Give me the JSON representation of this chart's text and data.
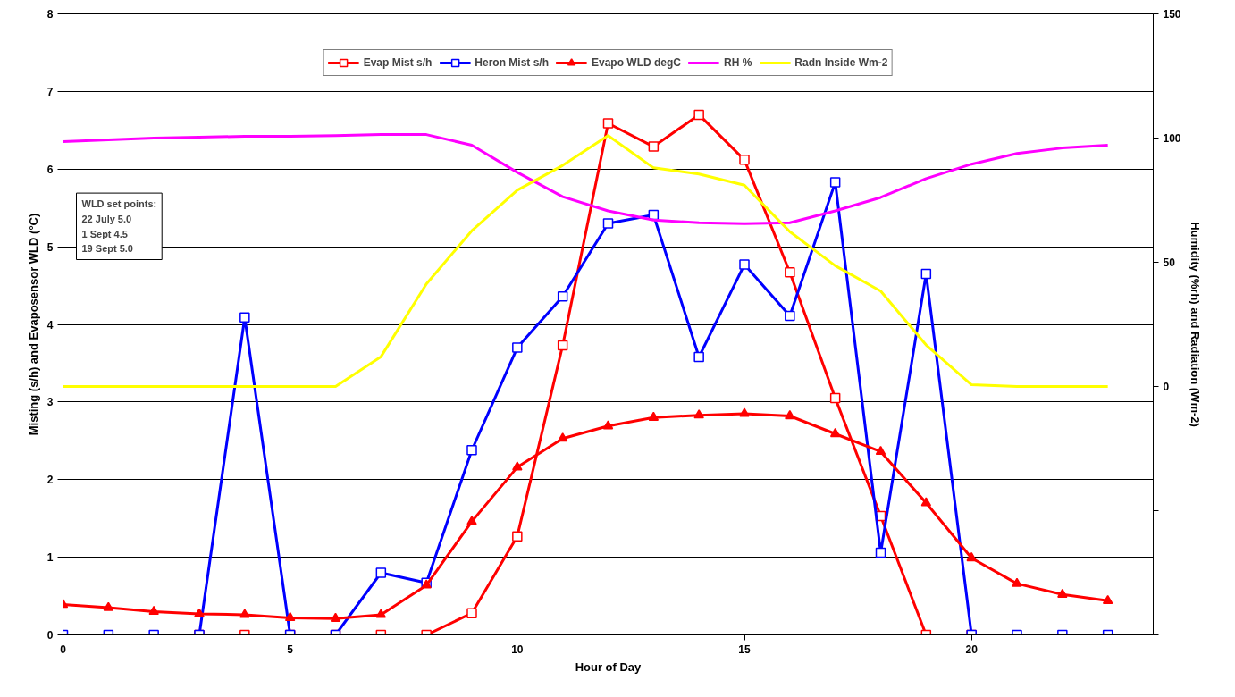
{
  "chart_data": {
    "type": "line",
    "xlabel": "Hour of Day",
    "ylabel": "Misting (s/h) and Evaposensor WLD (°C)",
    "y2label": "Humidity (%rh) and Radiation (Wm-2)",
    "x": [
      0,
      1,
      2,
      3,
      4,
      5,
      6,
      7,
      8,
      9,
      10,
      11,
      12,
      13,
      14,
      15,
      16,
      17,
      18,
      19,
      20,
      21,
      22,
      23
    ],
    "xlim": [
      0,
      24
    ],
    "xticks": [
      0,
      5,
      10,
      15,
      20
    ],
    "ylim": [
      0,
      8
    ],
    "yticks": [
      0,
      1,
      2,
      3,
      4,
      5,
      6,
      7,
      8
    ],
    "y2lim": [
      -100,
      150
    ],
    "y2ticks": [
      {
        "value": -100,
        "label": null
      },
      {
        "value": -50,
        "label": null
      },
      0,
      50,
      100,
      150
    ],
    "grid": "y",
    "legend": "top",
    "series": [
      {
        "name": "Evap Mist s/h",
        "color": "#ff0000",
        "marker": "square",
        "values": [
          null,
          null,
          null,
          0,
          0,
          0,
          0,
          0,
          0,
          0.28,
          1.27,
          3.73,
          6.59,
          6.29,
          6.7,
          6.12,
          4.67,
          3.05,
          1.53,
          0,
          0,
          null,
          null,
          null
        ]
      },
      {
        "name": "Heron Mist s/h",
        "color": "#0000ff",
        "marker": "square",
        "values": [
          0,
          0,
          0,
          0,
          4.09,
          0,
          0,
          0.8,
          0.67,
          2.38,
          3.7,
          4.36,
          5.3,
          5.41,
          3.58,
          4.77,
          4.11,
          5.83,
          1.06,
          4.65,
          0,
          0,
          0,
          0
        ]
      },
      {
        "name": "Evapo WLD degC",
        "color": "#ff0000",
        "marker": "triangle",
        "values": [
          0.39,
          0.35,
          0.3,
          0.27,
          0.26,
          0.22,
          0.21,
          0.26,
          0.64,
          1.46,
          2.16,
          2.53,
          2.69,
          2.8,
          2.83,
          2.85,
          2.82,
          2.59,
          2.36,
          1.7,
          0.99,
          0.66,
          0.52,
          0.44
        ]
      },
      {
        "name": "RH %",
        "color": "#ff00ff",
        "marker": "none",
        "axis": "y2",
        "values": [
          98.6,
          99.3,
          100,
          100.4,
          100.7,
          100.7,
          101,
          101.4,
          101.4,
          97.1,
          86.2,
          76.4,
          70.7,
          67,
          65.9,
          65.6,
          65.9,
          70.7,
          76.1,
          83.7,
          89.5,
          93.8,
          96,
          97.1
        ]
      },
      {
        "name": "Radn Inside Wm-2",
        "color": "#ffff00",
        "marker": "none",
        "axis": "y2",
        "values": [
          0,
          0,
          0,
          0,
          0,
          0,
          0,
          12,
          41.3,
          62.7,
          79,
          89,
          101,
          88,
          85.5,
          81,
          62.3,
          48.6,
          38.4,
          16.7,
          0.7,
          0,
          0,
          0
        ]
      }
    ],
    "annotations": [
      "WLD set points:\n22 July 5.0\n1 Sept 4.5\n19 Sept 5.0"
    ]
  }
}
